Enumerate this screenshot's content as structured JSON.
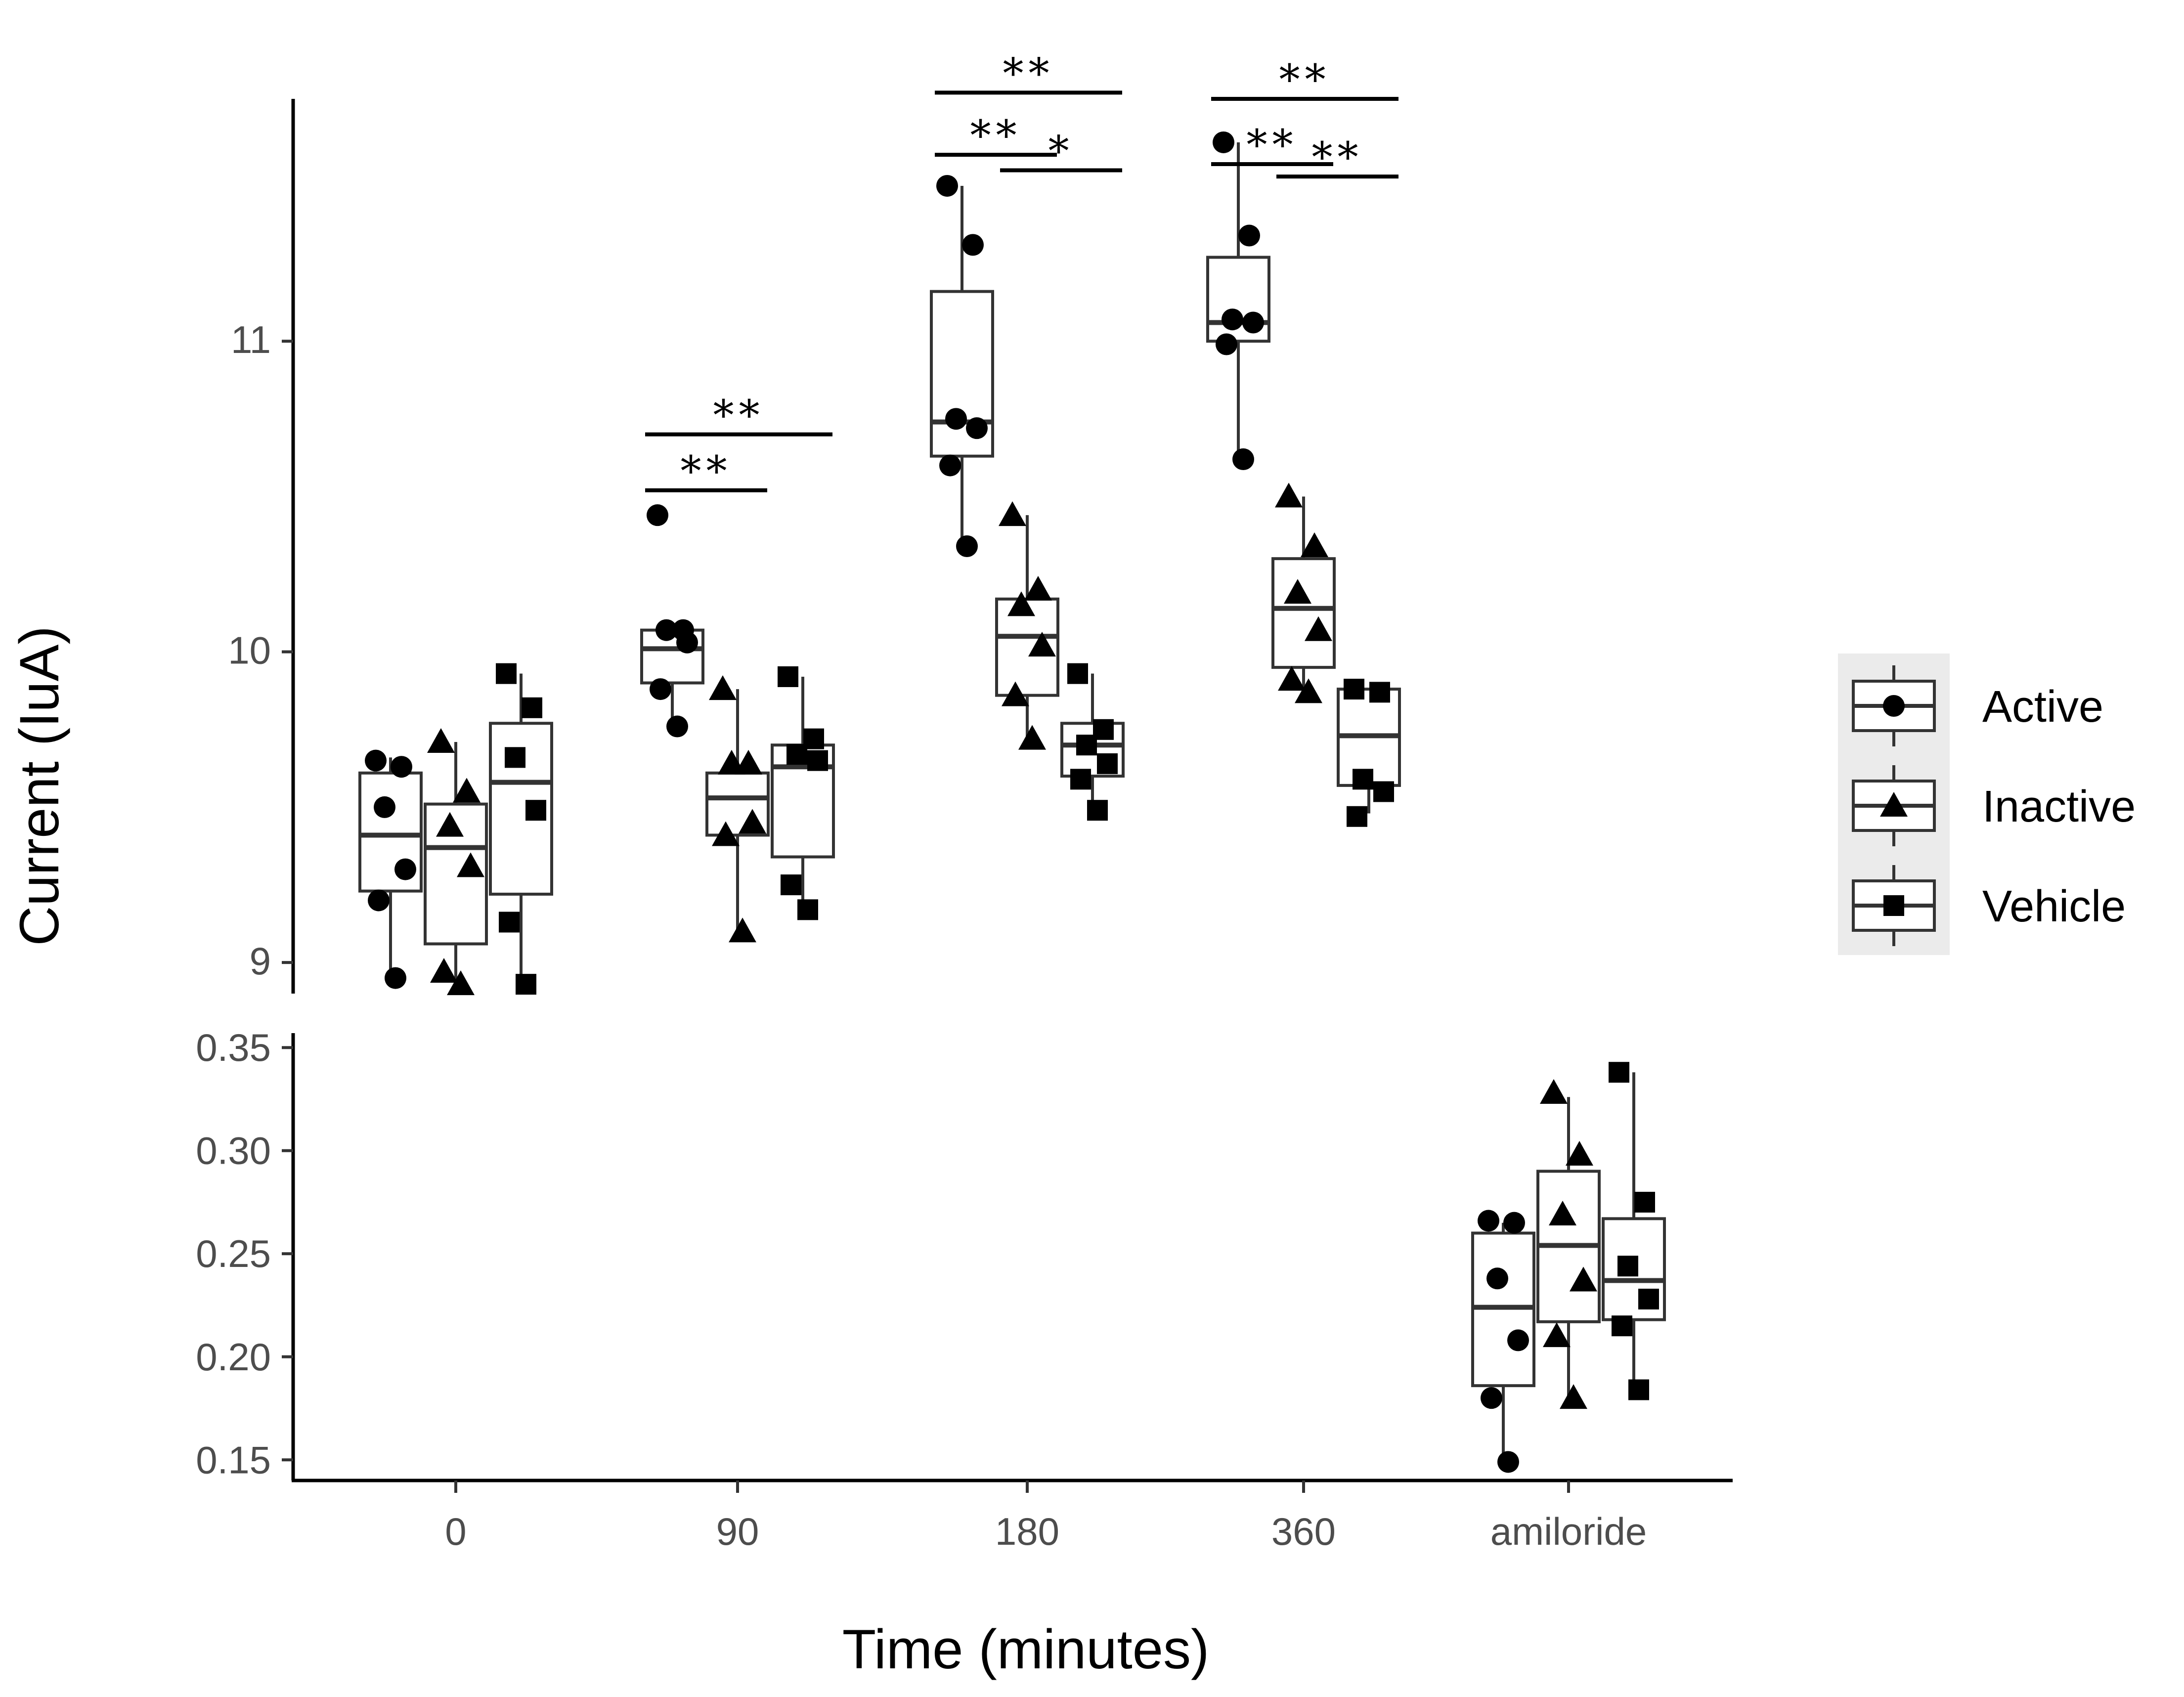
{
  "chart_data": {
    "type": "box",
    "ylabel": "Current (IuA)",
    "xlabel": "Time (minutes)",
    "categories": [
      "0",
      "90",
      "180",
      "360",
      "amiloride"
    ],
    "upper_panel": {
      "ylim": [
        8.9,
        11.78
      ],
      "yticks": [
        9,
        10,
        11
      ],
      "ytick_labels": [
        "9",
        "10",
        "11"
      ]
    },
    "lower_panel": {
      "ylim": [
        0.14,
        0.357
      ],
      "yticks": [
        0.15,
        0.2,
        0.25,
        0.3,
        0.35
      ],
      "ytick_labels": [
        "0.15",
        "0.20",
        "0.25",
        "0.30",
        "0.35"
      ]
    },
    "series": [
      {
        "name": "Active",
        "shape": "circle",
        "boxes": [
          {
            "category": "0",
            "panel": "upper",
            "min": 8.95,
            "q1": 9.23,
            "median": 9.41,
            "q3": 9.61,
            "max": 9.66,
            "points": [
              9.65,
              9.63,
              9.5,
              9.3,
              9.2,
              8.95
            ]
          },
          {
            "category": "90",
            "panel": "upper",
            "min": 9.76,
            "q1": 9.9,
            "median": 10.01,
            "q3": 10.07,
            "max": 10.07,
            "points": [
              10.44,
              10.07,
              10.07,
              10.03,
              9.88,
              9.76
            ]
          },
          {
            "category": "180",
            "panel": "upper",
            "min": 10.34,
            "q1": 10.63,
            "median": 10.74,
            "q3": 11.16,
            "max": 11.5,
            "points": [
              11.5,
              11.31,
              10.75,
              10.72,
              10.6,
              10.34
            ]
          },
          {
            "category": "360",
            "panel": "upper",
            "min": 10.62,
            "q1": 11.0,
            "median": 11.06,
            "q3": 11.27,
            "max": 11.64,
            "points": [
              11.64,
              11.34,
              11.07,
              11.06,
              10.99,
              10.62
            ]
          },
          {
            "category": "amiloride",
            "panel": "lower",
            "min": 0.148,
            "q1": 0.186,
            "median": 0.224,
            "q3": 0.26,
            "max": 0.265,
            "points": [
              0.266,
              0.265,
              0.238,
              0.208,
              0.18,
              0.149
            ]
          }
        ]
      },
      {
        "name": "Inactive",
        "shape": "triangle",
        "boxes": [
          {
            "category": "0",
            "panel": "upper",
            "min": 8.93,
            "q1": 9.06,
            "median": 9.37,
            "q3": 9.51,
            "max": 9.71,
            "points": [
              9.71,
              9.55,
              9.44,
              9.31,
              8.97,
              8.93
            ]
          },
          {
            "category": "90",
            "panel": "upper",
            "min": 9.1,
            "q1": 9.41,
            "median": 9.53,
            "q3": 9.61,
            "max": 9.88,
            "points": [
              9.88,
              9.64,
              9.64,
              9.45,
              9.41,
              9.1
            ]
          },
          {
            "category": "180",
            "panel": "upper",
            "min": 9.72,
            "q1": 9.86,
            "median": 10.05,
            "q3": 10.17,
            "max": 10.44,
            "points": [
              10.44,
              10.2,
              10.15,
              10.02,
              9.86,
              9.72
            ]
          },
          {
            "category": "360",
            "panel": "upper",
            "min": 9.87,
            "q1": 9.95,
            "median": 10.14,
            "q3": 10.3,
            "max": 10.5,
            "points": [
              10.5,
              10.34,
              10.19,
              10.07,
              9.91,
              9.87
            ]
          },
          {
            "category": "amiloride",
            "panel": "lower",
            "min": 0.178,
            "q1": 0.217,
            "median": 0.254,
            "q3": 0.29,
            "max": 0.326,
            "points": [
              0.328,
              0.298,
              0.269,
              0.237,
              0.21,
              0.18
            ]
          }
        ]
      },
      {
        "name": "Vehicle",
        "shape": "square",
        "boxes": [
          {
            "category": "0",
            "panel": "upper",
            "min": 8.93,
            "q1": 9.22,
            "median": 9.58,
            "q3": 9.77,
            "max": 9.93,
            "points": [
              9.93,
              9.82,
              9.66,
              9.49,
              9.13,
              8.93
            ]
          },
          {
            "category": "90",
            "panel": "upper",
            "min": 9.17,
            "q1": 9.34,
            "median": 9.63,
            "q3": 9.7,
            "max": 9.92,
            "points": [
              9.92,
              9.72,
              9.67,
              9.65,
              9.25,
              9.17
            ]
          },
          {
            "category": "180",
            "panel": "upper",
            "min": 9.49,
            "q1": 9.6,
            "median": 9.7,
            "q3": 9.77,
            "max": 9.93,
            "points": [
              9.93,
              9.75,
              9.7,
              9.64,
              9.59,
              9.49
            ]
          },
          {
            "category": "360",
            "panel": "upper",
            "min": 9.48,
            "q1": 9.57,
            "median": 9.73,
            "q3": 9.88,
            "max": 9.88,
            "points": [
              9.88,
              9.87,
              9.59,
              9.55,
              9.47
            ]
          },
          {
            "category": "amiloride",
            "panel": "lower",
            "min": 0.184,
            "q1": 0.218,
            "median": 0.237,
            "q3": 0.267,
            "max": 0.338,
            "points": [
              0.338,
              0.275,
              0.244,
              0.228,
              0.215,
              0.184
            ]
          }
        ]
      }
    ],
    "significance": [
      {
        "category": "90",
        "from": "Active",
        "to": "Inactive",
        "label": "**",
        "y": 10.52
      },
      {
        "category": "90",
        "from": "Active",
        "to": "Vehicle",
        "label": "**",
        "y": 10.7
      },
      {
        "category": "180",
        "from": "Active",
        "to": "Inactive",
        "label": "**",
        "y": 11.6
      },
      {
        "category": "180",
        "from": "Inactive",
        "to": "Vehicle",
        "label": "*",
        "y": 11.55
      },
      {
        "category": "180",
        "from": "Active",
        "to": "Vehicle",
        "label": "**",
        "y": 11.8
      },
      {
        "category": "360",
        "from": "Active",
        "to": "Inactive",
        "label": "**",
        "y": 11.57
      },
      {
        "category": "360",
        "from": "Inactive",
        "to": "Vehicle",
        "label": "**",
        "y": 11.53
      },
      {
        "category": "360",
        "from": "Active",
        "to": "Vehicle",
        "label": "**",
        "y": 11.78
      }
    ],
    "legend": {
      "position": "right",
      "entries": [
        "Active",
        "Inactive",
        "Vehicle"
      ]
    }
  }
}
